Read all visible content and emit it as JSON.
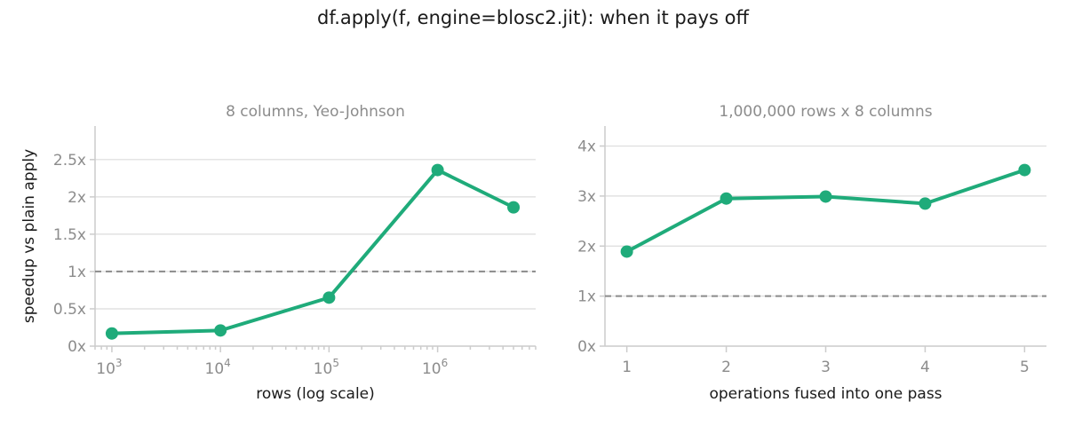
{
  "title": "df.apply(f, engine=blosc2.jit): when it pays off",
  "accent_color": "#1fab7a",
  "chart_data": [
    {
      "type": "line",
      "title": "8 columns, Yeo-Johnson",
      "xlabel": "rows (log scale)",
      "ylabel": "speedup vs plain apply",
      "x_scale": "log",
      "x": [
        1000,
        10000,
        100000,
        1000000,
        5000000
      ],
      "values": [
        0.17,
        0.21,
        0.65,
        2.36,
        1.86
      ],
      "ylim": [
        0,
        2.95
      ],
      "yticks": [
        0,
        0.5,
        1,
        1.5,
        2,
        2.5
      ],
      "ytick_labels": [
        "0x",
        "0.5x",
        "1x",
        "1.5x",
        "2x",
        "2.5x"
      ],
      "xticks": [
        1000,
        10000,
        100000,
        1000000
      ],
      "xtick_labels": [
        {
          "base": "10",
          "exp": "3"
        },
        {
          "base": "10",
          "exp": "4"
        },
        {
          "base": "10",
          "exp": "5"
        },
        {
          "base": "10",
          "exp": "6"
        }
      ],
      "reference_line": 1,
      "grid": "horizontal"
    },
    {
      "type": "line",
      "title": "1,000,000 rows x 8 columns",
      "xlabel": "operations fused into one pass",
      "ylabel": "",
      "x_scale": "linear",
      "x": [
        1,
        2,
        3,
        4,
        5
      ],
      "values": [
        1.89,
        2.95,
        2.99,
        2.85,
        3.52
      ],
      "ylim": [
        0,
        4.4
      ],
      "yticks": [
        0,
        1,
        2,
        3,
        4
      ],
      "ytick_labels": [
        "0x",
        "1x",
        "2x",
        "3x",
        "4x"
      ],
      "xticks": [
        1,
        2,
        3,
        4,
        5
      ],
      "xtick_labels": [
        "1",
        "2",
        "3",
        "4",
        "5"
      ],
      "reference_line": 1,
      "grid": "horizontal"
    }
  ]
}
